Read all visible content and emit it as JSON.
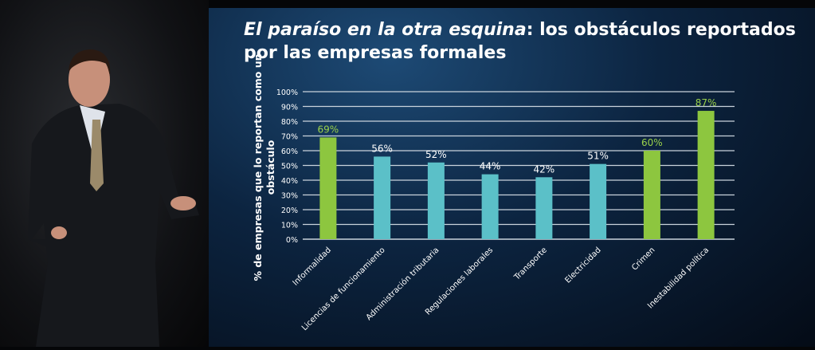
{
  "slide": {
    "title_italic": "El paraíso en la otra esquina",
    "title_rest": ": los obstáculos reportados por las empresas formales"
  },
  "chart_data": {
    "type": "bar",
    "title": "El paraíso en la otra esquina: los obstáculos reportados por las empresas formales",
    "xlabel": "",
    "ylabel": "% de empresas que lo reportan como un obstáculo",
    "ylabel_lines": [
      "% de empresas que lo reportan como un",
      "obstáculo"
    ],
    "ylim": [
      0,
      100
    ],
    "yticks": [
      "0%",
      "10%",
      "20%",
      "30%",
      "40%",
      "50%",
      "60%",
      "70%",
      "80%",
      "90%",
      "100%"
    ],
    "grid": true,
    "categories": [
      "Informalidad",
      "Licencias de funcionamiento",
      "Administración tributaria",
      "Regulaciones laborales",
      "Transporte",
      "Electricidad",
      "Crimen",
      "Inestabilidad política"
    ],
    "values": [
      69,
      56,
      52,
      44,
      42,
      51,
      60,
      87
    ],
    "labels": [
      "69%",
      "56%",
      "52%",
      "44%",
      "42%",
      "51%",
      "60%",
      "87%"
    ],
    "highlight": [
      true,
      false,
      false,
      false,
      false,
      false,
      true,
      true
    ],
    "colors": {
      "highlight": "#8dc63f",
      "normal": "#5bc0c8",
      "highlight_label": "#9ad14b",
      "normal_label": "#ffffff"
    }
  }
}
